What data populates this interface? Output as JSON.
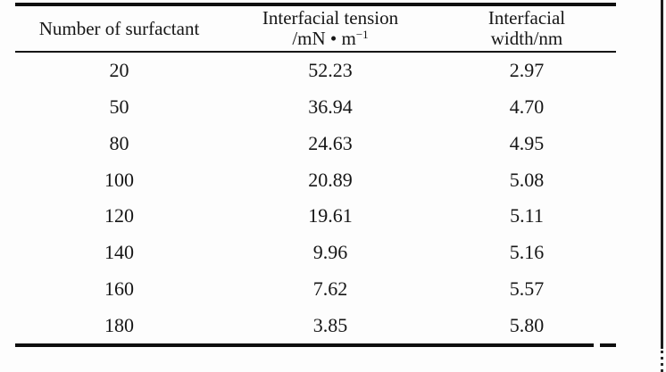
{
  "table": {
    "header": {
      "col1": "Number of surfactant",
      "col2_line1": "Interfacial tension",
      "col2_line2_base": "/mN • m",
      "col2_line2_sup": "−1",
      "col3_line1": "Interfacial",
      "col3_line2": "width/nm"
    },
    "rows": [
      [
        "20",
        "52.23",
        "2.97"
      ],
      [
        "50",
        "36.94",
        "4.70"
      ],
      [
        "80",
        "24.63",
        "4.95"
      ],
      [
        "100",
        "20.89",
        "5.08"
      ],
      [
        "120",
        "19.61",
        "5.11"
      ],
      [
        "140",
        "9.96",
        "5.16"
      ],
      [
        "160",
        "7.62",
        "5.57"
      ],
      [
        "180",
        "3.85",
        "5.80"
      ]
    ]
  },
  "chart_data": {
    "type": "table",
    "columns": [
      "Number of surfactant",
      "Interfacial tension /mN·m⁻¹",
      "Interfacial width/nm"
    ],
    "rows": [
      [
        20,
        52.23,
        2.97
      ],
      [
        50,
        36.94,
        4.7
      ],
      [
        80,
        24.63,
        4.95
      ],
      [
        100,
        20.89,
        5.08
      ],
      [
        120,
        19.61,
        5.11
      ],
      [
        140,
        9.96,
        5.16
      ],
      [
        160,
        7.62,
        5.57
      ],
      [
        180,
        3.85,
        5.8
      ]
    ]
  }
}
